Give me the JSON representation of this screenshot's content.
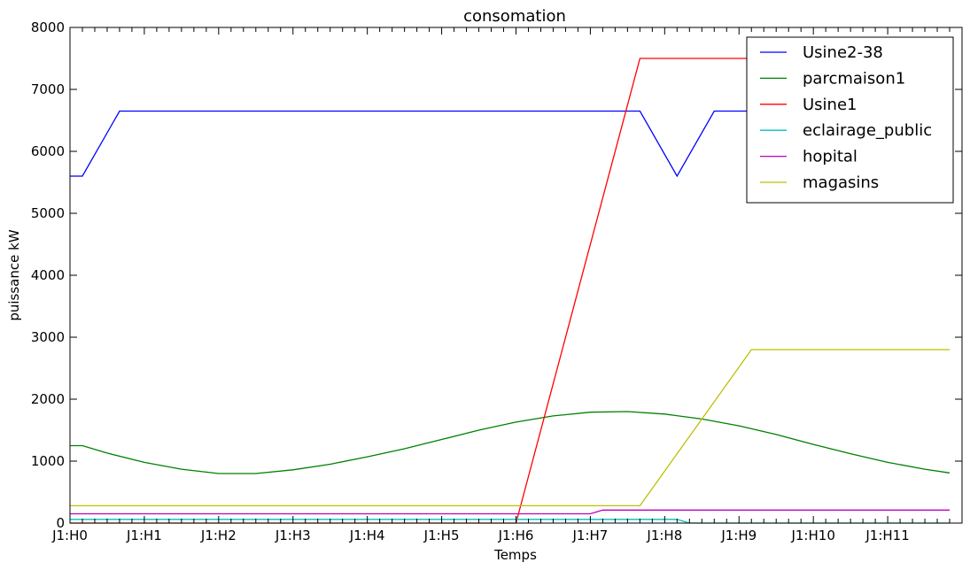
{
  "chart_data": {
    "type": "line",
    "title": "consomation",
    "xlabel": "Temps",
    "ylabel": "puissance kW",
    "xlim": [
      0,
      12
    ],
    "ylim": [
      0,
      8000
    ],
    "yticks": [
      0,
      1000,
      2000,
      3000,
      4000,
      5000,
      6000,
      7000,
      8000
    ],
    "xtick_positions": [
      0,
      1,
      2,
      3,
      4,
      5,
      6,
      7,
      8,
      9,
      10,
      11
    ],
    "xtick_labels": [
      "J1:H0",
      "J1:H1",
      "J1:H2",
      "J1:H3",
      "J1:H4",
      "J1:H5",
      "J1:H6",
      "J1:H7",
      "J1:H8",
      "J1:H9",
      "J1:H10",
      "J1:H11"
    ],
    "grid": false,
    "legend_position": "top-right",
    "series": [
      {
        "name": "Usine2-38",
        "color": "#0000ff",
        "x": [
          0,
          0.167,
          0.667,
          7.667,
          8.167,
          8.667,
          11.833
        ],
        "y": [
          5600,
          5600,
          6650,
          6650,
          5600,
          6650,
          6650
        ]
      },
      {
        "name": "parcmaison1",
        "color": "#008000",
        "x": [
          0,
          0.167,
          0.5,
          1,
          1.5,
          2,
          2.5,
          3,
          3.5,
          4,
          4.5,
          5,
          5.5,
          6,
          6.5,
          7,
          7.5,
          8,
          8.5,
          9,
          9.5,
          10,
          10.5,
          11,
          11.5,
          11.833
        ],
        "y": [
          1250,
          1250,
          1130,
          980,
          870,
          800,
          800,
          860,
          950,
          1070,
          1200,
          1350,
          1500,
          1630,
          1730,
          1790,
          1800,
          1760,
          1680,
          1570,
          1430,
          1270,
          1120,
          980,
          870,
          810
        ]
      },
      {
        "name": "Usine1",
        "color": "#ff0000",
        "x": [
          0,
          6.0,
          7.667,
          11.833
        ],
        "y": [
          0,
          0,
          7500,
          7500
        ]
      },
      {
        "name": "eclairage_public",
        "color": "#00bfbf",
        "x": [
          0,
          8.167,
          8.333,
          11.833
        ],
        "y": [
          60,
          60,
          0,
          0
        ]
      },
      {
        "name": "hopital",
        "color": "#bf00bf",
        "x": [
          0,
          7.0,
          7.167,
          11.833
        ],
        "y": [
          150,
          150,
          210,
          210
        ]
      },
      {
        "name": "magasins",
        "color": "#bfbf00",
        "x": [
          0,
          7.667,
          9.167,
          11.833
        ],
        "y": [
          280,
          280,
          2800,
          2800
        ]
      }
    ]
  }
}
